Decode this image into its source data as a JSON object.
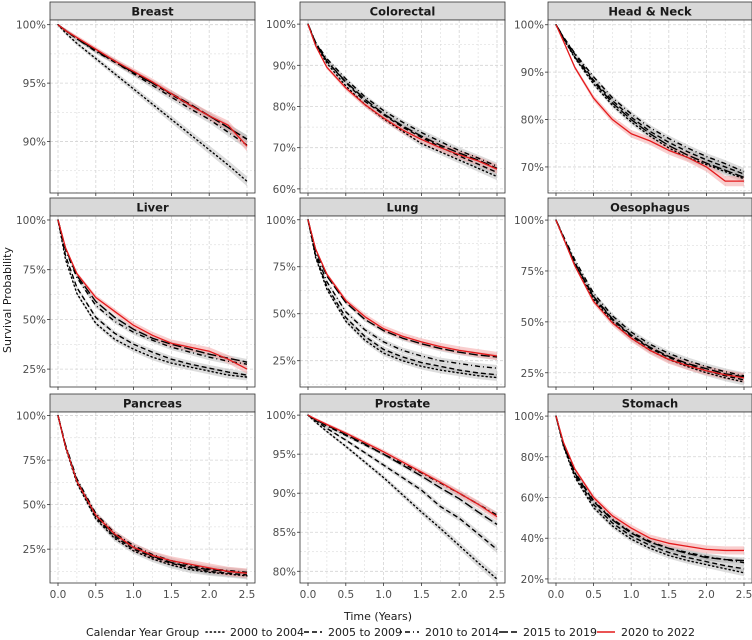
{
  "figure": {
    "ylabel": "Survival Probability",
    "xlabel": "Time (Years)",
    "x_ticks": [
      "0.0",
      "0.5",
      "1.0",
      "1.5",
      "2.0",
      "2.5"
    ],
    "legend_title": "Calendar Year Group"
  },
  "chart_data": [
    {
      "type": "line",
      "title": "Breast",
      "xlim": [
        0,
        2.5
      ],
      "ylim": [
        85.6,
        100.4
      ],
      "y_ticks": [
        90,
        95,
        100
      ],
      "y_tick_labels": [
        "90%",
        "95%",
        "100%"
      ],
      "x": [
        0,
        0.1,
        0.25,
        0.5,
        0.75,
        1.0,
        1.25,
        1.5,
        1.75,
        2.0,
        2.25,
        2.5
      ],
      "series": [
        {
          "name": "2000 to 2004",
          "values": [
            100,
            99.3,
            98.4,
            97.1,
            95.8,
            94.5,
            93.2,
            91.9,
            90.6,
            89.3,
            88.0,
            86.6
          ]
        },
        {
          "name": "2005 to 2009",
          "values": [
            100,
            99.5,
            98.8,
            97.8,
            96.8,
            95.9,
            95.0,
            94.0,
            93.1,
            92.2,
            91.2,
            90.2
          ]
        },
        {
          "name": "2010 to 2014",
          "values": [
            100,
            99.5,
            98.8,
            97.7,
            96.8,
            95.8,
            94.8,
            93.8,
            92.8,
            91.9,
            90.8,
            89.7
          ]
        },
        {
          "name": "2015 to 2019",
          "values": [
            100,
            99.5,
            98.8,
            97.8,
            96.9,
            95.9,
            95.0,
            94.1,
            93.2,
            92.2,
            91.2,
            90.2
          ]
        },
        {
          "name": "2020 to 2022",
          "values": [
            100,
            99.5,
            98.9,
            97.9,
            96.9,
            96.0,
            95.1,
            94.1,
            93.1,
            92.2,
            91.4,
            89.6
          ]
        }
      ]
    },
    {
      "type": "line",
      "title": "Colorectal",
      "xlim": [
        0,
        2.5
      ],
      "ylim": [
        59,
        101
      ],
      "y_ticks": [
        60,
        70,
        80,
        90,
        100
      ],
      "y_tick_labels": [
        "60%",
        "70%",
        "80%",
        "90%",
        "100%"
      ],
      "x": [
        0,
        0.1,
        0.25,
        0.5,
        0.75,
        1.0,
        1.25,
        1.5,
        1.75,
        2.0,
        2.25,
        2.5
      ],
      "series": [
        {
          "name": "2000 to 2004",
          "values": [
            100,
            95.0,
            90.5,
            85.0,
            80.5,
            77.0,
            74.0,
            71.0,
            69.0,
            67.0,
            65.0,
            63.0
          ]
        },
        {
          "name": "2005 to 2009",
          "values": [
            100,
            95.3,
            91.0,
            85.8,
            81.3,
            78.0,
            75.0,
            72.5,
            70.2,
            68.0,
            66.0,
            64.0
          ]
        },
        {
          "name": "2010 to 2014",
          "values": [
            100,
            95.6,
            91.6,
            86.7,
            82.4,
            79.0,
            76.2,
            73.7,
            71.5,
            69.3,
            67.5,
            65.5
          ]
        },
        {
          "name": "2015 to 2019",
          "values": [
            100,
            95.5,
            91.0,
            86.0,
            81.8,
            78.2,
            75.3,
            72.8,
            70.6,
            68.7,
            67.0,
            65.0
          ]
        },
        {
          "name": "2020 to 2022",
          "values": [
            100,
            94.8,
            89.5,
            84.5,
            80.5,
            77.2,
            74.3,
            72.0,
            70.0,
            68.3,
            66.8,
            64.8
          ]
        }
      ]
    },
    {
      "type": "line",
      "title": "Head & Neck",
      "xlim": [
        0,
        2.5
      ],
      "ylim": [
        64.5,
        101
      ],
      "y_ticks": [
        70,
        80,
        90,
        100
      ],
      "y_tick_labels": [
        "70%",
        "80%",
        "90%",
        "100%"
      ],
      "x": [
        0,
        0.1,
        0.25,
        0.5,
        0.75,
        1.0,
        1.25,
        1.5,
        1.75,
        2.0,
        2.25,
        2.5
      ],
      "series": [
        {
          "name": "2000 to 2004",
          "values": [
            100,
            97.0,
            93.0,
            87.5,
            83.0,
            79.5,
            76.5,
            74.0,
            72.0,
            70.5,
            69.0,
            67.5
          ]
        },
        {
          "name": "2005 to 2009",
          "values": [
            100,
            97.3,
            93.8,
            88.3,
            84.0,
            80.5,
            77.5,
            75.2,
            73.2,
            71.5,
            70.0,
            68.5
          ]
        },
        {
          "name": "2010 to 2014",
          "values": [
            100,
            97.4,
            94.0,
            89.0,
            84.6,
            81.2,
            78.3,
            76.0,
            74.0,
            72.2,
            70.7,
            69.0
          ]
        },
        {
          "name": "2015 to 2019",
          "values": [
            100,
            97.2,
            93.2,
            88.0,
            83.5,
            80.0,
            77.0,
            74.5,
            72.5,
            70.8,
            69.3,
            67.8
          ]
        },
        {
          "name": "2020 to 2022",
          "values": [
            100,
            96.5,
            91.0,
            84.5,
            80.0,
            77.0,
            75.5,
            73.5,
            72.0,
            70.0,
            67.0,
            67.0
          ]
        }
      ]
    },
    {
      "type": "line",
      "title": "Liver",
      "xlim": [
        0,
        2.5
      ],
      "ylim": [
        16,
        102
      ],
      "y_ticks": [
        25,
        50,
        75,
        100
      ],
      "y_tick_labels": [
        "25%",
        "50%",
        "75%",
        "100%"
      ],
      "x": [
        0,
        0.1,
        0.25,
        0.5,
        0.75,
        1.0,
        1.25,
        1.5,
        1.75,
        2.0,
        2.25,
        2.5
      ],
      "series": [
        {
          "name": "2000 to 2004",
          "values": [
            100,
            80.0,
            63.0,
            48.0,
            40.0,
            35.0,
            31.0,
            28.0,
            26.0,
            24.0,
            22.0,
            21.0
          ]
        },
        {
          "name": "2005 to 2009",
          "values": [
            100,
            82.0,
            66.0,
            51.0,
            43.0,
            37.5,
            33.5,
            30.0,
            27.5,
            25.5,
            23.5,
            22.0
          ]
        },
        {
          "name": "2010 to 2014",
          "values": [
            100,
            85.0,
            71.0,
            57.0,
            49.0,
            43.5,
            39.5,
            36.0,
            33.5,
            31.0,
            29.0,
            27.5
          ]
        },
        {
          "name": "2015 to 2019",
          "values": [
            100,
            85.5,
            72.0,
            59.0,
            51.0,
            45.0,
            40.5,
            37.5,
            35.0,
            32.5,
            30.5,
            28.5
          ]
        },
        {
          "name": "2020 to 2022",
          "values": [
            100,
            86.0,
            73.0,
            61.0,
            54.0,
            47.0,
            42.0,
            38.0,
            36.0,
            34.0,
            30.0,
            25.0
          ]
        }
      ]
    },
    {
      "type": "line",
      "title": "Lung",
      "xlim": [
        0,
        2.5
      ],
      "ylim": [
        11,
        102
      ],
      "y_ticks": [
        25,
        50,
        75,
        100
      ],
      "y_tick_labels": [
        "25%",
        "50%",
        "75%",
        "100%"
      ],
      "x": [
        0,
        0.1,
        0.25,
        0.5,
        0.75,
        1.0,
        1.25,
        1.5,
        1.75,
        2.0,
        2.25,
        2.5
      ],
      "series": [
        {
          "name": "2000 to 2004",
          "values": [
            100,
            80.0,
            63.0,
            46.0,
            36.0,
            29.0,
            25.0,
            22.0,
            20.0,
            18.5,
            17.0,
            16.0
          ]
        },
        {
          "name": "2005 to 2009",
          "values": [
            100,
            81.0,
            64.5,
            48.0,
            38.0,
            31.0,
            27.0,
            24.0,
            22.0,
            20.0,
            18.5,
            17.5
          ]
        },
        {
          "name": "2010 to 2014",
          "values": [
            100,
            82.5,
            67.0,
            51.0,
            41.5,
            35.0,
            30.5,
            27.5,
            25.0,
            23.5,
            22.0,
            21.0
          ]
        },
        {
          "name": "2015 to 2019",
          "values": [
            100,
            84.0,
            70.0,
            56.0,
            47.0,
            41.0,
            37.0,
            34.0,
            31.5,
            29.5,
            28.0,
            27.0
          ]
        },
        {
          "name": "2020 to 2022",
          "values": [
            100,
            84.5,
            71.0,
            57.0,
            48.5,
            42.0,
            38.0,
            35.0,
            32.5,
            30.5,
            29.0,
            27.5
          ]
        }
      ]
    },
    {
      "type": "line",
      "title": "Oesophagus",
      "xlim": [
        0,
        2.5
      ],
      "ylim": [
        18,
        102
      ],
      "y_ticks": [
        25,
        50,
        75,
        100
      ],
      "y_tick_labels": [
        "25%",
        "50%",
        "75%",
        "100%"
      ],
      "x": [
        0,
        0.1,
        0.25,
        0.5,
        0.75,
        1.0,
        1.25,
        1.5,
        1.75,
        2.0,
        2.25,
        2.5
      ],
      "series": [
        {
          "name": "2000 to 2004",
          "values": [
            100,
            91.0,
            78.0,
            61.0,
            50.0,
            42.0,
            36.0,
            31.5,
            28.0,
            25.0,
            22.5,
            20.5
          ]
        },
        {
          "name": "2005 to 2009",
          "values": [
            100,
            91.5,
            79.0,
            62.0,
            51.0,
            43.0,
            37.0,
            32.5,
            29.0,
            26.0,
            23.5,
            21.5
          ]
        },
        {
          "name": "2010 to 2014",
          "values": [
            100,
            92.0,
            80.5,
            64.0,
            53.0,
            45.0,
            39.0,
            34.5,
            31.0,
            28.0,
            25.5,
            23.5
          ]
        },
        {
          "name": "2015 to 2019",
          "values": [
            100,
            91.5,
            79.0,
            62.5,
            51.5,
            43.5,
            37.5,
            33.0,
            29.5,
            27.0,
            24.5,
            23.0
          ]
        },
        {
          "name": "2020 to 2022",
          "values": [
            100,
            91.0,
            77.5,
            60.0,
            49.5,
            42.0,
            36.0,
            31.5,
            28.5,
            26.0,
            24.0,
            22.5
          ]
        }
      ]
    },
    {
      "type": "line",
      "title": "Pancreas",
      "xlim": [
        0,
        2.5
      ],
      "ylim": [
        6,
        102
      ],
      "y_ticks": [
        25,
        50,
        75,
        100
      ],
      "y_tick_labels": [
        "25%",
        "50%",
        "75%",
        "100%"
      ],
      "x": [
        0,
        0.1,
        0.25,
        0.5,
        0.75,
        1.0,
        1.25,
        1.5,
        1.75,
        2.0,
        2.25,
        2.5
      ],
      "series": [
        {
          "name": "2000 to 2004",
          "values": [
            100,
            82.0,
            62.0,
            42.0,
            31.0,
            24.0,
            19.5,
            16.0,
            13.5,
            12.0,
            11.0,
            10.0
          ]
        },
        {
          "name": "2005 to 2009",
          "values": [
            100,
            82.5,
            63.0,
            43.0,
            32.0,
            25.0,
            20.5,
            17.0,
            14.5,
            12.5,
            11.5,
            10.5
          ]
        },
        {
          "name": "2010 to 2014",
          "values": [
            100,
            83.5,
            64.5,
            45.0,
            34.0,
            27.0,
            22.0,
            18.5,
            16.0,
            14.0,
            13.0,
            12.0
          ]
        },
        {
          "name": "2015 to 2019",
          "values": [
            100,
            83.0,
            63.5,
            44.0,
            33.0,
            26.0,
            21.0,
            17.5,
            15.0,
            13.5,
            12.5,
            11.5
          ]
        },
        {
          "name": "2020 to 2022",
          "values": [
            100,
            82.5,
            63.0,
            44.0,
            33.5,
            26.0,
            21.5,
            18.5,
            16.5,
            14.5,
            12.5,
            11.5
          ]
        }
      ]
    },
    {
      "type": "line",
      "title": "Prostate",
      "xlim": [
        0,
        2.5
      ],
      "ylim": [
        78.5,
        100.4
      ],
      "y_ticks": [
        80,
        85,
        90,
        95,
        100
      ],
      "y_tick_labels": [
        "80%",
        "85%",
        "90%",
        "95%",
        "100%"
      ],
      "x": [
        0,
        0.1,
        0.25,
        0.5,
        0.75,
        1.0,
        1.25,
        1.5,
        1.75,
        2.0,
        2.25,
        2.5
      ],
      "series": [
        {
          "name": "2000 to 2004",
          "values": [
            100,
            99.1,
            97.9,
            96.0,
            94.0,
            92.0,
            89.8,
            87.6,
            85.5,
            83.3,
            81.1,
            79.0
          ]
        },
        {
          "name": "2005 to 2009",
          "values": [
            100,
            99.3,
            98.3,
            96.8,
            95.2,
            93.6,
            92.0,
            90.4,
            88.3,
            86.8,
            84.8,
            82.8
          ]
        },
        {
          "name": "2010 to 2014",
          "values": [
            100,
            99.4,
            98.6,
            97.4,
            96.2,
            95.0,
            93.8,
            92.6,
            91.3,
            90.0,
            88.6,
            87.2
          ]
        },
        {
          "name": "2015 to 2019",
          "values": [
            100,
            99.4,
            98.7,
            97.5,
            96.3,
            95.0,
            93.6,
            92.2,
            90.7,
            89.3,
            87.6,
            86.0
          ]
        },
        {
          "name": "2020 to 2022",
          "values": [
            100,
            99.5,
            98.8,
            97.7,
            96.5,
            95.3,
            94.0,
            92.7,
            91.4,
            90.0,
            88.6,
            87.0
          ]
        }
      ]
    },
    {
      "type": "line",
      "title": "Stomach",
      "xlim": [
        0,
        2.5
      ],
      "ylim": [
        18,
        102
      ],
      "y_ticks": [
        20,
        40,
        60,
        80,
        100
      ],
      "y_tick_labels": [
        "20%",
        "40%",
        "60%",
        "80%",
        "100%"
      ],
      "x": [
        0,
        0.1,
        0.25,
        0.5,
        0.75,
        1.0,
        1.25,
        1.5,
        1.75,
        2.0,
        2.25,
        2.5
      ],
      "series": [
        {
          "name": "2000 to 2004",
          "values": [
            100,
            85.0,
            70.0,
            55.0,
            46.0,
            39.5,
            35.0,
            31.5,
            29.0,
            27.0,
            25.0,
            23.0
          ]
        },
        {
          "name": "2005 to 2009",
          "values": [
            100,
            85.5,
            71.0,
            56.5,
            47.5,
            41.0,
            36.5,
            33.0,
            30.5,
            28.5,
            26.5,
            25.0
          ]
        },
        {
          "name": "2010 to 2014",
          "values": [
            100,
            86.0,
            72.5,
            58.5,
            49.5,
            43.0,
            38.5,
            35.0,
            33.0,
            31.0,
            29.5,
            28.0
          ]
        },
        {
          "name": "2015 to 2019",
          "values": [
            100,
            86.0,
            72.0,
            58.0,
            49.0,
            42.5,
            38.0,
            35.0,
            32.5,
            30.5,
            29.5,
            29.0
          ]
        },
        {
          "name": "2020 to 2022",
          "values": [
            100,
            87.0,
            74.0,
            60.0,
            51.0,
            45.0,
            40.0,
            37.5,
            36.0,
            34.5,
            34.0,
            34.0
          ]
        }
      ]
    }
  ],
  "legend": {
    "title": "Calendar Year Group",
    "items": [
      {
        "label": "2000 to 2004",
        "style": "dotted",
        "color": "#000000"
      },
      {
        "label": "2005 to 2009",
        "style": "dashed",
        "color": "#000000"
      },
      {
        "label": "2010 to 2014",
        "style": "dotdash",
        "color": "#000000"
      },
      {
        "label": "2015 to 2019",
        "style": "longdash",
        "color": "#000000"
      },
      {
        "label": "2020 to 2022",
        "style": "solid",
        "color": "#e41a1c"
      }
    ]
  },
  "colors": {
    "strip_bg": "#d9d9d9",
    "grid": "#d4d4d4",
    "band_grey": "#9e9e9e",
    "band_red": "#f4a6a6",
    "line_black": "#000000",
    "line_red": "#e41a1c"
  }
}
